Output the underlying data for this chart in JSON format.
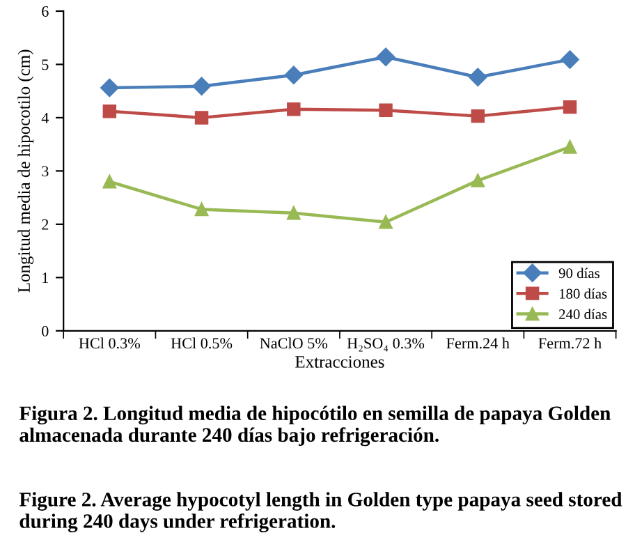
{
  "chart_data": {
    "type": "line",
    "xlabel": "Extracciones",
    "ylabel": "Longitud media de hipocotilo (cm)",
    "categories": [
      "HCl 0.3%",
      "HCl 0.5%",
      "NaClO 5%",
      "H₂SO₄ 0.3%",
      "Ferm.24 h",
      "Ferm.72 h"
    ],
    "series": [
      {
        "name": "90 días",
        "color": "#4a7ebb",
        "marker": "diamond",
        "values": [
          4.56,
          4.59,
          4.8,
          5.14,
          4.76,
          5.09
        ]
      },
      {
        "name": "180 días",
        "color": "#be4b48",
        "marker": "square",
        "values": [
          4.12,
          4.0,
          4.16,
          4.14,
          4.03,
          4.2
        ]
      },
      {
        "name": "240 días",
        "color": "#98b954",
        "marker": "triangle",
        "values": [
          2.8,
          2.28,
          2.21,
          2.04,
          2.82,
          3.45
        ]
      }
    ],
    "ylim": [
      0,
      6
    ],
    "yticks": [
      0,
      1,
      2,
      3,
      4,
      5,
      6
    ],
    "grid": false,
    "legend": "bottom right",
    "annotations": [
      "Figura 2. Longitud media de hipocótilo en semilla de papaya Golden almacenada durante 240 días bajo refrigeración.",
      "Figure 2. Average hypocotyl length in Golden type papaya seed stored during 240 days under refrigeration."
    ]
  }
}
